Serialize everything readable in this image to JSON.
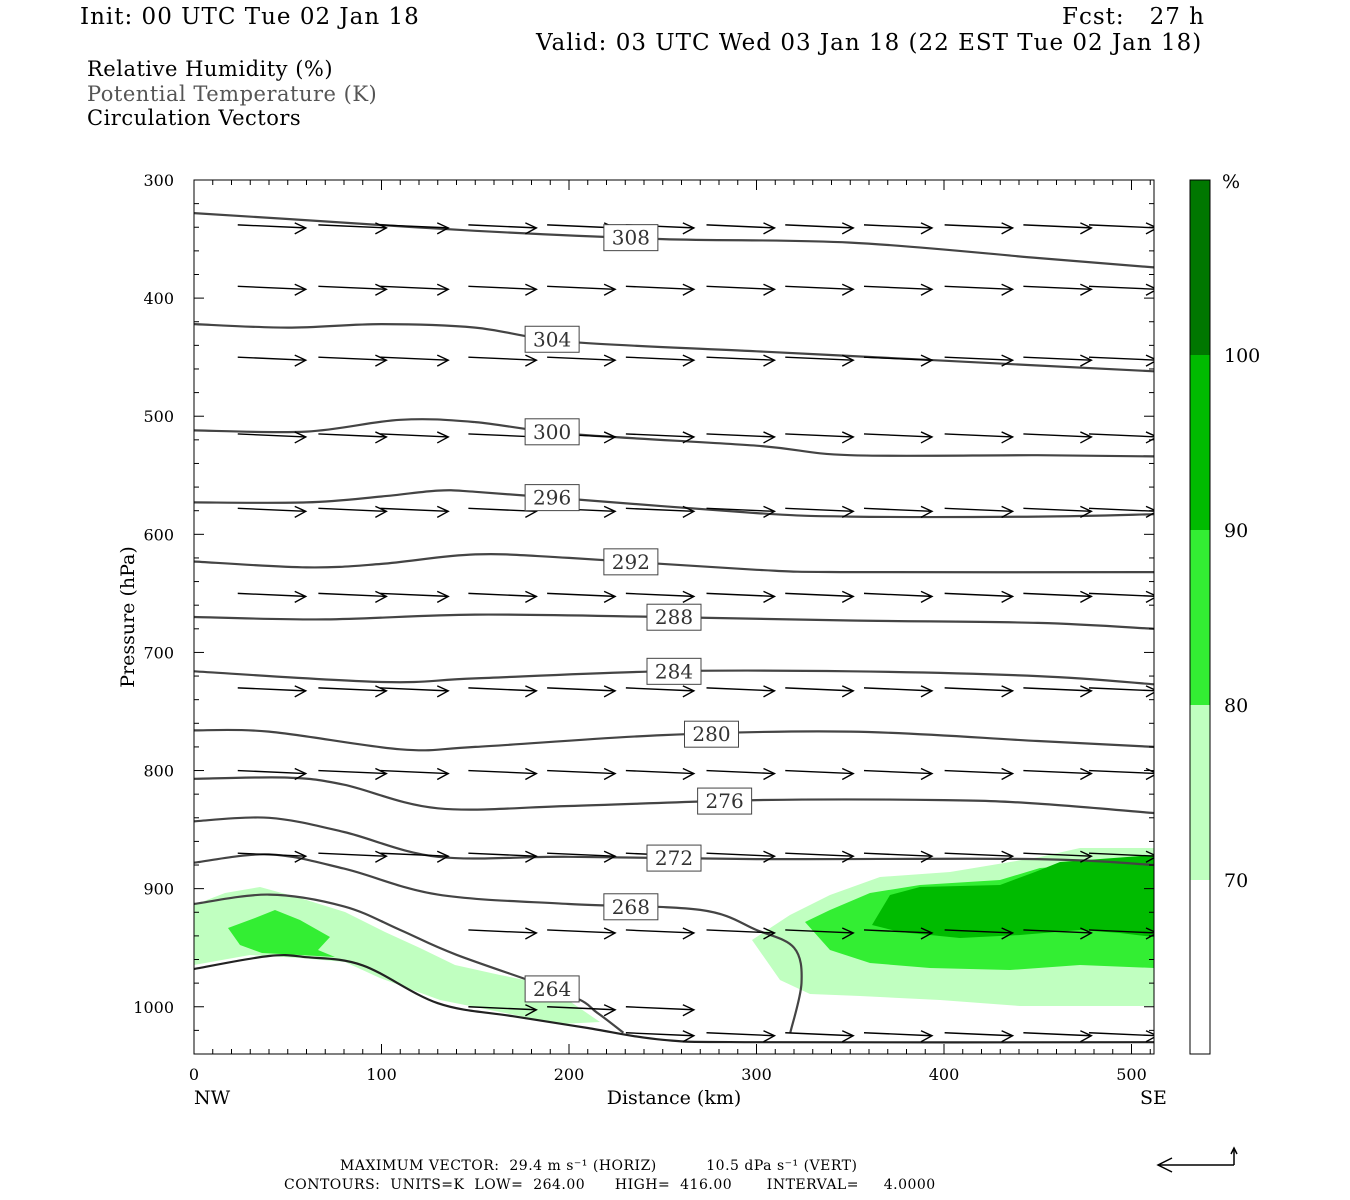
{
  "header": {
    "init": "Init: 00 UTC Tue 02 Jan 18",
    "fcst": "Fcst:   27 h",
    "valid": "Valid: 03 UTC Wed 03 Jan 18 (22 EST Tue 02 Jan 18)"
  },
  "legend": {
    "rh": "Relative Humidity (%)",
    "theta": "Potential Temperature (K)",
    "vectors": "Circulation Vectors"
  },
  "footer": {
    "max_vector": "MAXIMUM VECTOR:  29.4 m s⁻¹ (HORIZ)          10.5 dPa s⁻¹ (VERT)",
    "contours": "CONTOURS:  UNITS=K  LOW=  264.00      HIGH=  416.00       INTERVAL=     4.0000"
  },
  "colors": {
    "rh_70_80": "#c0ffc0",
    "rh_80_90": "#33ee33",
    "rh_90_100": "#00bb00",
    "rh_100": "#007700",
    "contour": "#444444",
    "vector": "#000000"
  },
  "chart_data": {
    "type": "cross-section",
    "xlabel": "Distance (km)",
    "ylabel": "Pressure (hPa)",
    "xlim": [
      0,
      512
    ],
    "ylim": [
      1040,
      300
    ],
    "x_ticks": [
      "0",
      "100",
      "200",
      "300",
      "400",
      "500"
    ],
    "y_ticks": [
      "300",
      "400",
      "500",
      "600",
      "700",
      "800",
      "900",
      "1000"
    ],
    "x_end_labels": {
      "left": "NW",
      "right": "SE"
    },
    "colorbar": {
      "unit": "%",
      "levels": [
        "70",
        "80",
        "90",
        "100"
      ],
      "colors": [
        "#ffffff",
        "#c0ffc0",
        "#33ee33",
        "#00bb00",
        "#007700"
      ]
    },
    "theta_contours": [
      {
        "label": "308",
        "label_x": 233,
        "points": [
          [
            0,
            328
          ],
          [
            50,
            333
          ],
          [
            150,
            343
          ],
          [
            250,
            350
          ],
          [
            350,
            353
          ],
          [
            450,
            366
          ],
          [
            512,
            374
          ]
        ]
      },
      {
        "label": "304",
        "label_x": 191,
        "points": [
          [
            0,
            422
          ],
          [
            50,
            425
          ],
          [
            100,
            422
          ],
          [
            150,
            425
          ],
          [
            200,
            437
          ],
          [
            300,
            445
          ],
          [
            400,
            453
          ],
          [
            512,
            462
          ]
        ]
      },
      {
        "label": "300",
        "label_x": 191,
        "points": [
          [
            0,
            512
          ],
          [
            60,
            513
          ],
          [
            110,
            503
          ],
          [
            150,
            505
          ],
          [
            200,
            515
          ],
          [
            300,
            525
          ],
          [
            350,
            533
          ],
          [
            450,
            533
          ],
          [
            512,
            534
          ]
        ]
      },
      {
        "label": "296",
        "label_x": 191,
        "points": [
          [
            0,
            573
          ],
          [
            60,
            573
          ],
          [
            100,
            568
          ],
          [
            130,
            563
          ],
          [
            150,
            564
          ],
          [
            200,
            570
          ],
          [
            300,
            582
          ],
          [
            350,
            585
          ],
          [
            450,
            585
          ],
          [
            512,
            583
          ]
        ]
      },
      {
        "label": "292",
        "label_x": 233,
        "points": [
          [
            0,
            623
          ],
          [
            60,
            628
          ],
          [
            100,
            625
          ],
          [
            150,
            617
          ],
          [
            200,
            620
          ],
          [
            300,
            630
          ],
          [
            350,
            632
          ],
          [
            512,
            632
          ]
        ]
      },
      {
        "label": "288",
        "label_x": 256,
        "points": [
          [
            0,
            670
          ],
          [
            70,
            672
          ],
          [
            150,
            668
          ],
          [
            250,
            670
          ],
          [
            350,
            673
          ],
          [
            450,
            675
          ],
          [
            512,
            680
          ]
        ]
      },
      {
        "label": "284",
        "label_x": 256,
        "points": [
          [
            0,
            716
          ],
          [
            100,
            725
          ],
          [
            150,
            722
          ],
          [
            250,
            716
          ],
          [
            350,
            716
          ],
          [
            450,
            720
          ],
          [
            512,
            727
          ]
        ]
      },
      {
        "label": "280",
        "label_x": 276,
        "points": [
          [
            0,
            766
          ],
          [
            40,
            767
          ],
          [
            110,
            782
          ],
          [
            150,
            780
          ],
          [
            250,
            770
          ],
          [
            350,
            767
          ],
          [
            450,
            775
          ],
          [
            512,
            780
          ]
        ]
      },
      {
        "label": "276",
        "label_x": 283,
        "points": [
          [
            0,
            807
          ],
          [
            50,
            806
          ],
          [
            80,
            812
          ],
          [
            130,
            832
          ],
          [
            200,
            830
          ],
          [
            300,
            825
          ],
          [
            400,
            825
          ],
          [
            450,
            828
          ],
          [
            512,
            836
          ]
        ]
      },
      {
        "label": "272",
        "label_x": 256,
        "points": [
          [
            0,
            843
          ],
          [
            40,
            840
          ],
          [
            80,
            852
          ],
          [
            130,
            873
          ],
          [
            200,
            873
          ],
          [
            300,
            875
          ],
          [
            450,
            875
          ],
          [
            512,
            880
          ]
        ]
      },
      {
        "label": "268",
        "label_x": 233,
        "points": [
          [
            0,
            878
          ],
          [
            40,
            871
          ],
          [
            80,
            883
          ],
          [
            130,
            905
          ],
          [
            200,
            913
          ],
          [
            270,
            918
          ],
          [
            300,
            935
          ],
          [
            320,
            950
          ],
          [
            324,
            980
          ],
          [
            318,
            1022
          ]
        ]
      },
      {
        "label": "264",
        "label_x": 191,
        "points": [
          [
            0,
            913
          ],
          [
            40,
            905
          ],
          [
            80,
            915
          ],
          [
            110,
            935
          ],
          [
            140,
            956
          ],
          [
            200,
            990
          ],
          [
            215,
            1005
          ],
          [
            229,
            1022
          ]
        ]
      }
    ],
    "terrain": [
      [
        0,
        968
      ],
      [
        40,
        957
      ],
      [
        60,
        958
      ],
      [
        90,
        965
      ],
      [
        130,
        997
      ],
      [
        170,
        1008
      ],
      [
        210,
        1018
      ],
      [
        250,
        1028
      ],
      [
        300,
        1030
      ],
      [
        512,
        1030
      ]
    ],
    "vector_rows": [
      {
        "p": 338,
        "xs": [
          42,
          85,
          118,
          165,
          207,
          249,
          292,
          334,
          376,
          419,
          461,
          496
        ]
      },
      {
        "p": 390,
        "xs": [
          42,
          85,
          118,
          165,
          207,
          249,
          292,
          334,
          376,
          419,
          461,
          496
        ]
      },
      {
        "p": 450,
        "xs": [
          42,
          85,
          118,
          165,
          207,
          249,
          292,
          334,
          376,
          419,
          461,
          496
        ]
      },
      {
        "p": 515,
        "xs": [
          42,
          85,
          118,
          165,
          207,
          249,
          292,
          334,
          376,
          419,
          461,
          496
        ]
      },
      {
        "p": 578,
        "xs": [
          42,
          85,
          118,
          165,
          207,
          249,
          292,
          334,
          376,
          419,
          461,
          496
        ]
      },
      {
        "p": 650,
        "xs": [
          42,
          85,
          118,
          165,
          207,
          249,
          292,
          334,
          376,
          419,
          461,
          496
        ]
      },
      {
        "p": 730,
        "xs": [
          42,
          85,
          118,
          165,
          207,
          249,
          292,
          334,
          376,
          419,
          461,
          496
        ]
      },
      {
        "p": 800,
        "xs": [
          42,
          85,
          118,
          165,
          207,
          249,
          292,
          334,
          376,
          419,
          461,
          496
        ]
      },
      {
        "p": 870,
        "xs": [
          42,
          85,
          118,
          165,
          207,
          249,
          292,
          334,
          376,
          419,
          461,
          496
        ]
      },
      {
        "p": 935,
        "xs": [
          165,
          207,
          249,
          292,
          334,
          376,
          419,
          461,
          496
        ]
      },
      {
        "p": 1000,
        "xs": [
          165,
          207,
          249
        ]
      },
      {
        "p": 1022,
        "xs": [
          249,
          292,
          334,
          376,
          419,
          461,
          496
        ]
      }
    ]
  }
}
